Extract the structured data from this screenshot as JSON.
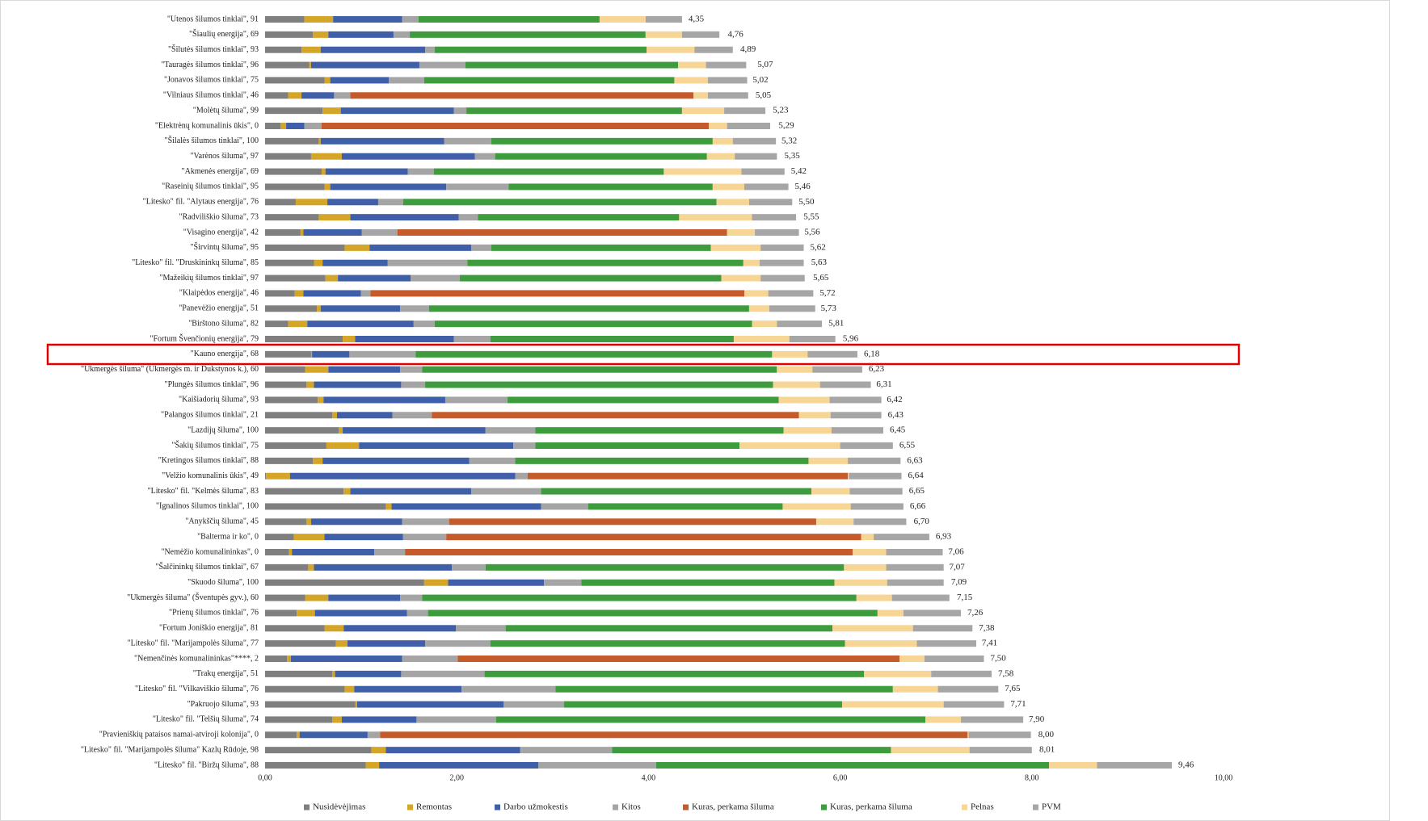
{
  "chart_data": {
    "type": "stacked_bar_horizontal",
    "categories": [
      "\"Utenos šilumos tinklai\", 91",
      "\"Šiaulių energija\", 69",
      "\"Šilutės šilumos tinklai\", 93",
      "\"Tauragės šilumos tinklai\", 96",
      "\"Jonavos šilumos tinklai\", 75",
      "\"Vilniaus šilumos tinklai\", 46",
      "\"Molėtų šiluma\", 99",
      "\"Elektrėnų komunalinis ūkis\", 0",
      "\"Šilalės šilumos tinklai\", 100",
      "\"Varėnos šiluma\", 97",
      "\"Akmenės energija\", 69",
      "\"Raseinių šilumos tinklai\", 95",
      "\"Litesko\" fil. \"Alytaus energija\", 76",
      "\"Radviliškio šiluma\", 73",
      "\"Visagino energija\", 42",
      "\"Širvintų šiluma\", 95",
      "\"Litesko\" fil. \"Druskininkų šiluma\", 85",
      "\"Mažeikių šilumos tinklai\", 97",
      "\"Klaipėdos energija\", 46",
      "\"Panevėžio energija\", 51",
      "\"Birštono šiluma\", 82",
      "\"Fortum Švenčionių energija\", 79",
      "\"Kauno energija\", 68",
      "\"Ukmergės šiluma\" (Ukmergės m. ir Dukstynos k.), 60",
      "\"Plungės šilumos tinklai\", 96",
      "\"Kaišiadorių šiluma\", 93",
      "\"Palangos šilumos tinklai\", 21",
      "\"Lazdijų šiluma\", 100",
      "\"Šakių šilumos tinklai\", 75",
      "\"Kretingos šilumos tinklai\", 88",
      "\"Velžio komunalinis ūkis\", 49",
      "\"Litesko\" fil. \"Kelmės šiluma\", 83",
      "\"Ignalinos šilumos tinklai\", 100",
      "\"Anykščių šiluma\", 45",
      "\"Balterma ir ko\", 0",
      "\"Nemėžio komunalininkas\", 0",
      "\"Šalčininkų šilumos tinklai\", 67",
      "\"Skuodo šiluma\", 100",
      "\"Ukmergės šiluma\" (Šventupės gyv.), 60",
      "\"Prienų šilumos tinklai\", 76",
      "\"Fortum Joniškio energija\", 81",
      "\"Litesko\" fil. \"Marijampolės šiluma\", 77",
      "\"Nemenčinės komunalininkas\"****, 2",
      "\"Trakų energija\", 51",
      "\"Litesko\" fil. \"Vilkaviškio šiluma\", 76",
      "\"Pakruojo šiluma\", 93",
      "\"Litesko\" fil. \"Telšių šiluma\", 74",
      "\"Pravieniškių pataisos namai-atviroji kolonija\", 0",
      "\"Litesko\" fil. \"Marijampolės šiluma\" Kazlų Rūdoje, 98",
      "\"Litesko\" fil. \"Biržų šiluma\", 88"
    ],
    "series": [
      {
        "name": "Nusidėvėjimas",
        "color": "#7f7f7f",
        "values": [
          0.41,
          0.5,
          0.38,
          0.46,
          0.62,
          0.24,
          0.6,
          0.16,
          0.56,
          0.48,
          0.59,
          0.62,
          0.32,
          0.56,
          0.37,
          0.83,
          0.51,
          0.63,
          0.31,
          0.54,
          0.24,
          0.81,
          0.48,
          0.42,
          0.43,
          0.55,
          0.7,
          0.77,
          0.64,
          0.5,
          0.01,
          0.82,
          1.26,
          0.43,
          0.3,
          0.25,
          0.45,
          1.66,
          0.42,
          0.33,
          0.62,
          0.74,
          0.23,
          0.7,
          0.83,
          0.94,
          0.7,
          0.33,
          1.11,
          1.05
        ]
      },
      {
        "name": "Remontas",
        "color": "#d4a526",
        "values": [
          0.3,
          0.16,
          0.2,
          0.02,
          0.06,
          0.14,
          0.19,
          0.06,
          0.02,
          0.32,
          0.04,
          0.06,
          0.33,
          0.33,
          0.03,
          0.26,
          0.09,
          0.13,
          0.09,
          0.04,
          0.2,
          0.13,
          0.01,
          0.24,
          0.08,
          0.06,
          0.05,
          0.04,
          0.34,
          0.1,
          0.25,
          0.07,
          0.06,
          0.05,
          0.32,
          0.03,
          0.06,
          0.25,
          0.24,
          0.19,
          0.2,
          0.12,
          0.04,
          0.03,
          0.1,
          0.02,
          0.1,
          0.03,
          0.15,
          0.14
        ]
      },
      {
        "name": "Darbo užmokestis",
        "color": "#3f60a8",
        "values": [
          0.72,
          0.68,
          1.09,
          1.13,
          0.61,
          0.34,
          1.18,
          0.19,
          1.29,
          1.39,
          0.86,
          1.21,
          0.53,
          1.13,
          0.61,
          1.06,
          0.68,
          0.76,
          0.6,
          0.83,
          1.11,
          1.03,
          0.39,
          0.75,
          0.91,
          1.27,
          0.58,
          1.49,
          1.61,
          1.53,
          2.35,
          1.26,
          1.56,
          0.95,
          0.82,
          0.86,
          1.44,
          1.0,
          0.75,
          0.96,
          1.17,
          0.81,
          1.16,
          0.69,
          1.12,
          1.53,
          0.78,
          0.71,
          1.4,
          1.66
        ]
      },
      {
        "name": "Kitos",
        "color": "#a5a5a5",
        "values": [
          0.17,
          0.17,
          0.1,
          0.48,
          0.37,
          0.17,
          0.13,
          0.18,
          0.49,
          0.21,
          0.27,
          0.65,
          0.26,
          0.2,
          0.37,
          0.21,
          0.83,
          0.51,
          0.1,
          0.3,
          0.22,
          0.38,
          0.69,
          0.23,
          0.25,
          0.65,
          0.41,
          0.52,
          0.23,
          0.48,
          0.13,
          0.73,
          0.49,
          0.49,
          0.45,
          0.32,
          0.35,
          0.39,
          0.23,
          0.22,
          0.52,
          0.68,
          0.58,
          0.87,
          0.98,
          0.63,
          0.83,
          0.13,
          0.96,
          1.23
        ]
      },
      {
        "name": "Kuras, perkama šiluma",
        "color": "#c55a2a",
        "values": [
          null,
          null,
          null,
          null,
          null,
          3.58,
          null,
          4.04,
          null,
          null,
          null,
          null,
          null,
          null,
          3.44,
          null,
          null,
          null,
          3.9,
          null,
          null,
          null,
          null,
          null,
          null,
          null,
          3.83,
          null,
          null,
          null,
          3.34,
          null,
          null,
          3.83,
          4.33,
          4.67,
          null,
          null,
          null,
          null,
          null,
          null,
          4.61,
          null,
          null,
          null,
          null,
          6.13,
          null,
          null
        ]
      },
      {
        "name": "Kuras, perkama šiluma",
        "color": "#3e9b3e",
        "values": [
          1.89,
          2.46,
          2.21,
          2.22,
          2.61,
          null,
          2.25,
          null,
          2.31,
          2.21,
          2.4,
          2.13,
          3.27,
          2.1,
          null,
          2.29,
          2.88,
          2.73,
          null,
          3.34,
          3.31,
          2.54,
          3.72,
          3.7,
          3.63,
          2.83,
          null,
          2.59,
          2.13,
          3.06,
          null,
          2.82,
          2.03,
          null,
          null,
          null,
          3.74,
          2.64,
          4.53,
          4.69,
          3.41,
          3.7,
          null,
          3.96,
          3.52,
          2.9,
          4.48,
          null,
          2.91,
          4.1
        ]
      },
      {
        "name": "Pelnas",
        "color": "#f7d695",
        "values": [
          0.48,
          0.38,
          0.5,
          0.29,
          0.35,
          0.15,
          0.44,
          0.19,
          0.21,
          0.29,
          0.81,
          0.33,
          0.34,
          0.76,
          0.29,
          0.52,
          0.17,
          0.41,
          0.25,
          0.21,
          0.26,
          0.58,
          0.37,
          0.37,
          0.49,
          0.53,
          0.33,
          0.5,
          1.05,
          0.41,
          0.01,
          0.4,
          0.71,
          0.39,
          0.13,
          0.35,
          0.44,
          0.55,
          0.37,
          0.27,
          0.84,
          0.75,
          0.26,
          0.7,
          0.47,
          1.06,
          0.37,
          0.01,
          0.82,
          0.5
        ]
      },
      {
        "name": "PVM",
        "color": "#a6a6a6",
        "values": [
          0.38,
          0.39,
          0.4,
          0.42,
          0.41,
          0.42,
          0.43,
          0.45,
          0.45,
          0.44,
          0.45,
          0.46,
          0.45,
          0.46,
          0.46,
          0.45,
          0.46,
          0.46,
          0.47,
          0.48,
          0.47,
          0.48,
          0.52,
          0.52,
          0.53,
          0.54,
          0.53,
          0.54,
          0.55,
          0.55,
          0.55,
          0.55,
          0.55,
          0.55,
          0.58,
          0.59,
          0.6,
          0.59,
          0.6,
          0.6,
          0.62,
          0.62,
          0.62,
          0.63,
          0.63,
          0.63,
          0.65,
          0.65,
          0.65,
          0.78
        ]
      }
    ],
    "totals": [
      4.35,
      4.76,
      4.89,
      5.07,
      5.02,
      5.05,
      5.23,
      5.29,
      5.32,
      5.35,
      5.42,
      5.46,
      5.5,
      5.55,
      5.56,
      5.62,
      5.63,
      5.65,
      5.72,
      5.73,
      5.81,
      5.96,
      6.18,
      6.23,
      6.31,
      6.42,
      6.43,
      6.45,
      6.55,
      6.63,
      6.64,
      6.65,
      6.66,
      6.7,
      6.93,
      7.06,
      7.07,
      7.09,
      7.15,
      7.26,
      7.38,
      7.41,
      7.5,
      7.58,
      7.65,
      7.71,
      7.9,
      8.0,
      8.01,
      9.46
    ],
    "total_labels": [
      "4,35",
      "4,76",
      "4,89",
      "5,07",
      "5,02",
      "5,05",
      "5,23",
      "5,29",
      "5,32",
      "5,35",
      "5,42",
      "5,46",
      "5,50",
      "5,55",
      "5,56",
      "5,62",
      "5,63",
      "5,65",
      "5,72",
      "5,73",
      "5,81",
      "5,96",
      "6,18",
      "6,23",
      "6,31",
      "6,42",
      "6,43",
      "6,45",
      "6,55",
      "6,63",
      "6,64",
      "6,65",
      "6,66",
      "6,70",
      "6,93",
      "7,06",
      "7,07",
      "7,09",
      "7,15",
      "7,26",
      "7,38",
      "7,41",
      "7,50",
      "7,58",
      "7,65",
      "7,71",
      "7,90",
      "8,00",
      "8,01",
      "9,46"
    ],
    "xlim": [
      0,
      10
    ],
    "xticks": [
      {
        "value": 0,
        "label": "0,00"
      },
      {
        "value": 2,
        "label": "2,00"
      },
      {
        "value": 4,
        "label": "4,00"
      },
      {
        "value": 6,
        "label": "6,00"
      },
      {
        "value": 8,
        "label": "8,00"
      },
      {
        "value": 10,
        "label": "10,00"
      }
    ],
    "grid": false,
    "legend": "bottom"
  }
}
